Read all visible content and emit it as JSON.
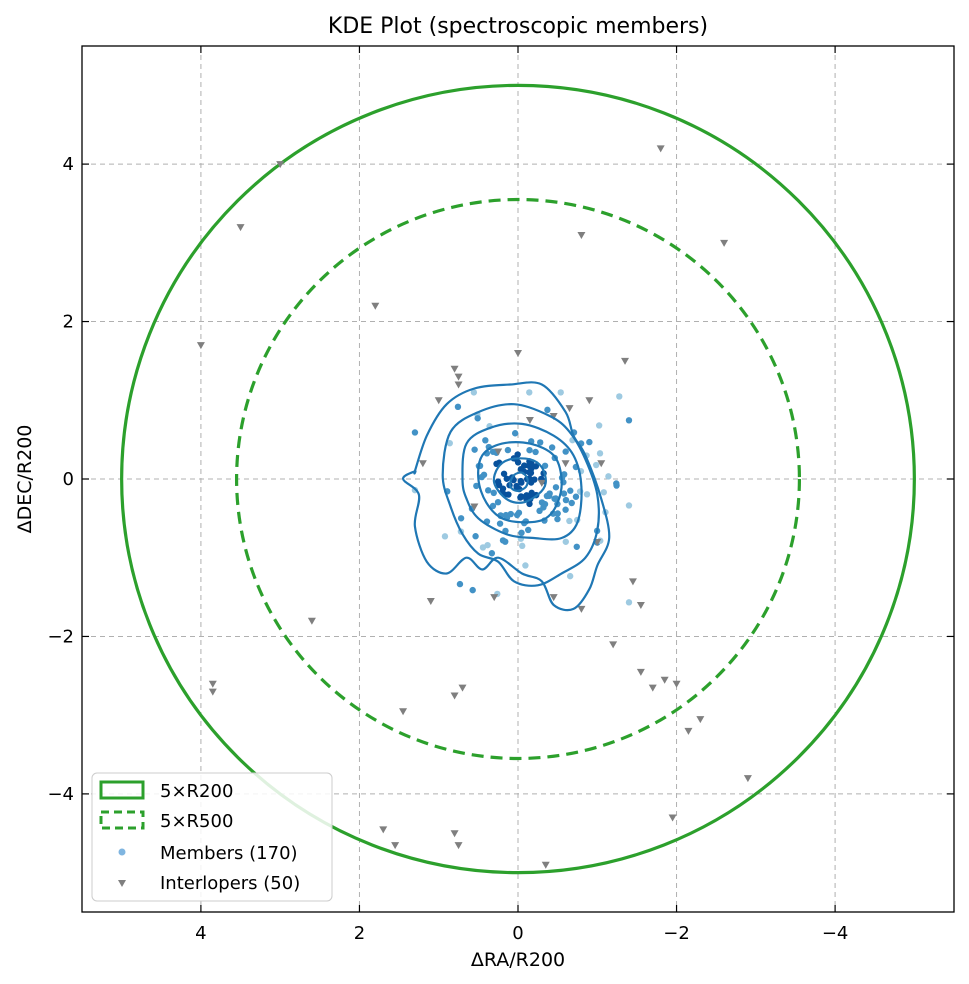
{
  "chart_data": {
    "type": "scatter",
    "title": "KDE Plot (spectroscopic members)",
    "xlabel": "ΔRA/R200",
    "ylabel": "ΔDEC/R200",
    "xlim": [
      5.5,
      -5.5
    ],
    "ylim": [
      -5.5,
      5.5
    ],
    "x_inverted": true,
    "grid": true,
    "legend_position": "lower-left",
    "x_ticks": [
      4,
      2,
      0,
      -2,
      -4
    ],
    "x_tick_labels": [
      "4",
      "2",
      "0",
      "−2",
      "−4"
    ],
    "y_ticks": [
      4,
      2,
      0,
      -2,
      -4
    ],
    "y_tick_labels": [
      "4",
      "2",
      "0",
      "−2",
      "−4"
    ],
    "colors": {
      "circles": "#2ca02c",
      "contour": "#1f77b4",
      "interlopers": "#7f7f7f",
      "member_light": "#9ecae1",
      "member_mid": "#4292c6",
      "member_dark": "#08519c",
      "grid": "#b0b0b0"
    },
    "circles": [
      {
        "label": "5×R200",
        "radius": 5.0,
        "style": "solid"
      },
      {
        "label": "5×R500",
        "radius": 3.55,
        "style": "dashed"
      }
    ],
    "legend": [
      {
        "label": "5×R200",
        "marker": "solid-rect"
      },
      {
        "label": "5×R500",
        "marker": "dashed-rect"
      },
      {
        "label": "Members (170)",
        "marker": "dot"
      },
      {
        "label": "Interlopers (50)",
        "marker": "triangle"
      }
    ],
    "contours": [
      [
        [
          0.1,
          -0.05
        ],
        [
          0.05,
          0.05
        ],
        [
          -0.05,
          0.08
        ],
        [
          -0.12,
          0.0
        ],
        [
          -0.1,
          -0.1
        ],
        [
          0.0,
          -0.15
        ],
        [
          0.08,
          -0.12
        ]
      ],
      [
        [
          0.3,
          -0.05
        ],
        [
          0.25,
          0.15
        ],
        [
          0.1,
          0.25
        ],
        [
          -0.15,
          0.25
        ],
        [
          -0.3,
          0.15
        ],
        [
          -0.35,
          -0.05
        ],
        [
          -0.25,
          -0.2
        ],
        [
          -0.05,
          -0.3
        ],
        [
          0.15,
          -0.25
        ]
      ],
      [
        [
          0.5,
          0.0
        ],
        [
          0.45,
          0.3
        ],
        [
          0.2,
          0.45
        ],
        [
          -0.15,
          0.45
        ],
        [
          -0.45,
          0.3
        ],
        [
          -0.55,
          0.0
        ],
        [
          -0.5,
          -0.3
        ],
        [
          -0.35,
          -0.5
        ],
        [
          -0.1,
          -0.55
        ],
        [
          0.2,
          -0.5
        ],
        [
          0.4,
          -0.3
        ]
      ],
      [
        [
          0.7,
          0.0
        ],
        [
          0.65,
          0.45
        ],
        [
          0.35,
          0.65
        ],
        [
          -0.05,
          0.7
        ],
        [
          -0.45,
          0.55
        ],
        [
          -0.7,
          0.3
        ],
        [
          -0.8,
          -0.1
        ],
        [
          -0.75,
          -0.55
        ],
        [
          -0.55,
          -0.75
        ],
        [
          -0.2,
          -0.75
        ],
        [
          0.15,
          -0.7
        ],
        [
          0.5,
          -0.5
        ],
        [
          0.65,
          -0.25
        ]
      ],
      [
        [
          0.95,
          0.05
        ],
        [
          0.85,
          0.6
        ],
        [
          0.5,
          0.85
        ],
        [
          0.05,
          0.95
        ],
        [
          -0.4,
          0.8
        ],
        [
          -0.65,
          0.6
        ],
        [
          -0.85,
          0.25
        ],
        [
          -1.0,
          -0.2
        ],
        [
          -1.0,
          -0.65
        ],
        [
          -0.85,
          -1.0
        ],
        [
          -0.55,
          -1.2
        ],
        [
          -0.25,
          -1.35
        ],
        [
          0.05,
          -1.3
        ],
        [
          0.25,
          -1.05
        ],
        [
          0.5,
          -0.95
        ],
        [
          0.7,
          -0.7
        ],
        [
          0.85,
          -0.35
        ]
      ],
      [
        [
          1.3,
          0.1
        ],
        [
          1.15,
          0.55
        ],
        [
          0.9,
          0.95
        ],
        [
          0.55,
          1.15
        ],
        [
          0.1,
          1.2
        ],
        [
          -0.3,
          1.2
        ],
        [
          -0.6,
          0.85
        ],
        [
          -0.7,
          0.55
        ],
        [
          -0.85,
          0.3
        ],
        [
          -1.05,
          -0.25
        ],
        [
          -1.15,
          -0.75
        ],
        [
          -1.0,
          -1.1
        ],
        [
          -0.9,
          -1.4
        ],
        [
          -0.7,
          -1.65
        ],
        [
          -0.45,
          -1.6
        ],
        [
          -0.3,
          -1.3
        ],
        [
          -0.05,
          -1.2
        ],
        [
          0.25,
          -1.0
        ],
        [
          0.45,
          -1.15
        ],
        [
          0.65,
          -1.0
        ],
        [
          0.9,
          -1.2
        ],
        [
          1.15,
          -1.05
        ],
        [
          1.3,
          -0.6
        ],
        [
          1.25,
          -0.2
        ],
        [
          1.45,
          0.0
        ],
        [
          1.3,
          0.1
        ]
      ]
    ],
    "interlopers": [
      [
        -1.8,
        4.2
      ],
      [
        3.0,
        4.0
      ],
      [
        3.5,
        3.2
      ],
      [
        -0.8,
        3.1
      ],
      [
        -2.6,
        3.0
      ],
      [
        1.8,
        2.2
      ],
      [
        4.0,
        1.7
      ],
      [
        0.0,
        1.6
      ],
      [
        -1.35,
        1.5
      ],
      [
        0.8,
        1.4
      ],
      [
        0.75,
        1.3
      ],
      [
        0.75,
        1.2
      ],
      [
        1.0,
        1.0
      ],
      [
        -0.9,
        1.0
      ],
      [
        -0.65,
        0.9
      ],
      [
        -0.45,
        0.8
      ],
      [
        -0.6,
        0.2
      ],
      [
        -1.05,
        0.2
      ],
      [
        1.2,
        0.2
      ],
      [
        -1.0,
        -0.8
      ],
      [
        -1.45,
        -1.3
      ],
      [
        1.1,
        -1.55
      ],
      [
        0.3,
        -1.5
      ],
      [
        -0.45,
        -1.5
      ],
      [
        -1.55,
        -1.6
      ],
      [
        -0.8,
        -1.65
      ],
      [
        -1.2,
        -2.1
      ],
      [
        2.6,
        -1.8
      ],
      [
        -1.55,
        -2.45
      ],
      [
        -1.85,
        -2.55
      ],
      [
        -2.0,
        -2.6
      ],
      [
        -1.7,
        -2.65
      ],
      [
        3.85,
        -2.6
      ],
      [
        3.85,
        -2.7
      ],
      [
        0.7,
        -2.65
      ],
      [
        0.8,
        -2.75
      ],
      [
        1.45,
        -2.95
      ],
      [
        -2.3,
        -3.05
      ],
      [
        -2.15,
        -3.2
      ],
      [
        -2.9,
        -3.8
      ],
      [
        -1.95,
        -4.3
      ],
      [
        1.7,
        -4.45
      ],
      [
        0.8,
        -4.5
      ],
      [
        1.55,
        -4.65
      ],
      [
        0.75,
        -4.65
      ],
      [
        -0.35,
        -4.9
      ],
      [
        0.25,
        0.35
      ],
      [
        -0.3,
        -0.05
      ],
      [
        0.55,
        -0.35
      ],
      [
        -0.15,
        0.75
      ]
    ]
  }
}
